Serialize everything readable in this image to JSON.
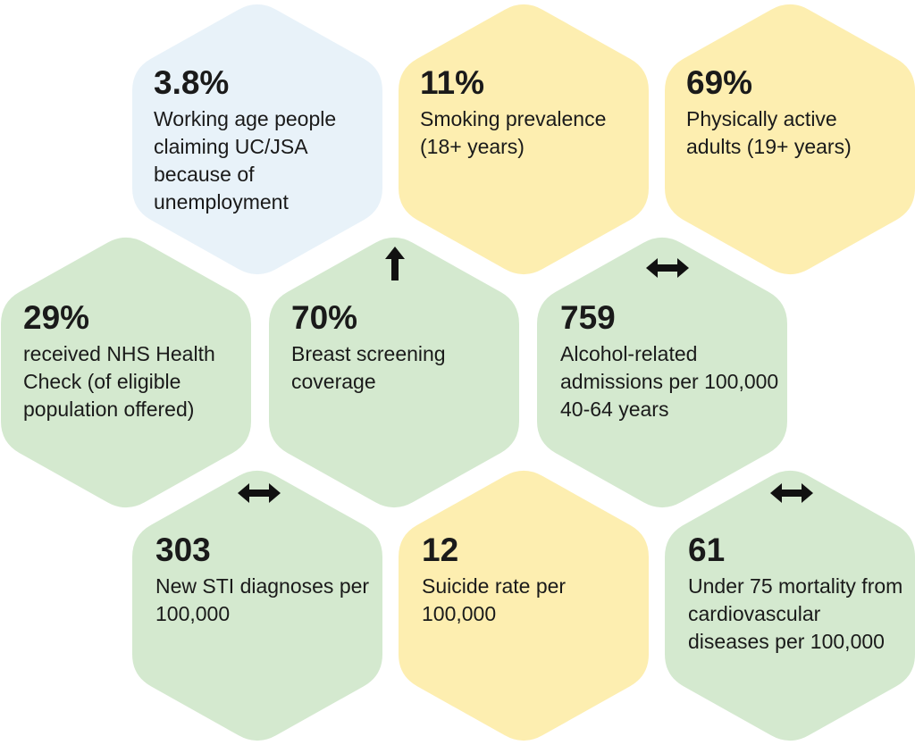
{
  "colors": {
    "blue": "#e8f2f9",
    "yellow": "#fdeeb0",
    "green": "#d4e9cf",
    "arrow": "#111111"
  },
  "hexes": [
    {
      "id": "unemployment",
      "value": "3.8%",
      "label": "Working age people claiming UC/JSA because of unemployment",
      "fill": "blue",
      "trend": "none"
    },
    {
      "id": "smoking",
      "value": "11%",
      "label": "Smoking prevalence (18+ years)",
      "fill": "yellow",
      "trend": "none"
    },
    {
      "id": "physically-active",
      "value": "69%",
      "label": "Physically active adults (19+ years)",
      "fill": "yellow",
      "trend": "none"
    },
    {
      "id": "nhs-health-check",
      "value": "29%",
      "label": "received NHS Health Check (of eligible population offered)",
      "fill": "green",
      "trend": "none"
    },
    {
      "id": "breast-screening",
      "value": "70%",
      "label": "Breast screening coverage",
      "fill": "green",
      "trend": "up"
    },
    {
      "id": "alcohol-admissions",
      "value": "759",
      "label": "Alcohol-related admissions per 100,000 40-64 years",
      "fill": "green",
      "trend": "no-change"
    },
    {
      "id": "sti-diagnoses",
      "value": "303",
      "label": "New STI diagnoses per 100,000",
      "fill": "green",
      "trend": "no-change"
    },
    {
      "id": "suicide-rate",
      "value": "12",
      "label": "Suicide rate per 100,000",
      "fill": "yellow",
      "trend": "none"
    },
    {
      "id": "cvd-mortality",
      "value": "61",
      "label": "Under 75 mortality from cardiovascular diseases per 100,000",
      "fill": "green",
      "trend": "no-change"
    }
  ]
}
